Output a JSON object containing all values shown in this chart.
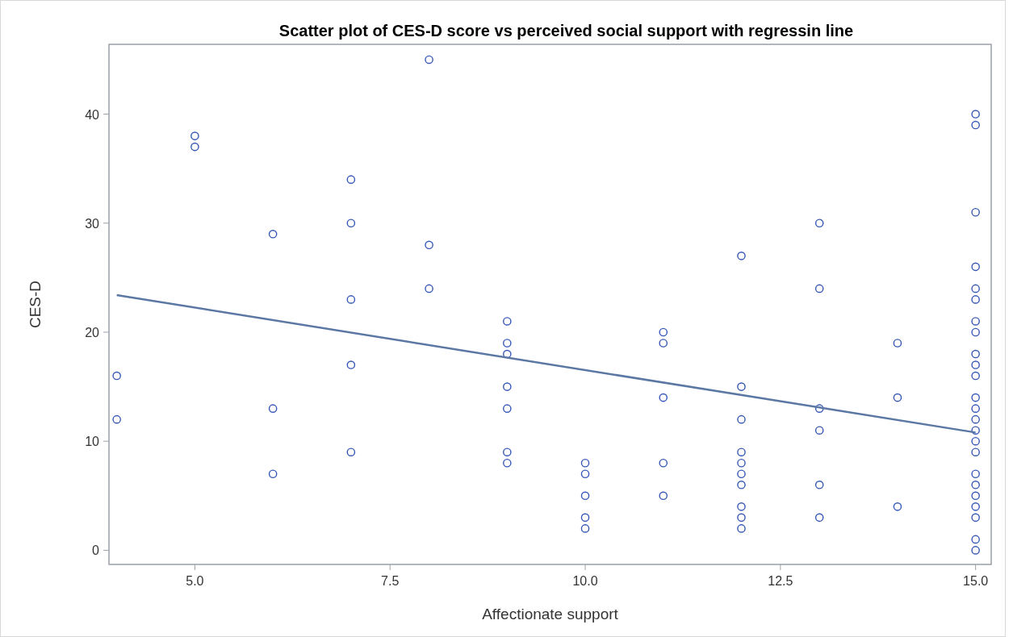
{
  "chart_data": {
    "type": "scatter",
    "title": "Scatter plot of CES-D score vs perceived social support with regressin line",
    "xlabel": "Affectionate support",
    "ylabel": "CES-D",
    "xlim": [
      3.9,
      15.2
    ],
    "ylim": [
      -1.3,
      46.4
    ],
    "xticks": [
      {
        "value": 5,
        "label": "5.0"
      },
      {
        "value": 7.5,
        "label": "7.5"
      },
      {
        "value": 10,
        "label": "10.0"
      },
      {
        "value": 12.5,
        "label": "12.5"
      },
      {
        "value": 15,
        "label": "15.0"
      }
    ],
    "yticks": [
      0,
      10,
      20,
      30,
      40
    ],
    "grid": false,
    "series": [
      {
        "marker": "circle",
        "color": "#3557b7",
        "x": [
          4,
          4,
          5,
          5,
          6,
          6,
          6,
          7,
          7,
          7,
          7,
          7,
          8,
          8,
          8,
          9,
          9,
          9,
          9,
          9,
          9,
          9,
          10,
          10,
          10,
          10,
          10,
          11,
          11,
          11,
          11,
          11,
          12,
          12,
          12,
          12,
          12,
          12,
          12,
          12,
          12,
          12,
          13,
          13,
          13,
          13,
          13,
          13,
          14,
          14,
          14,
          15,
          15,
          15,
          15,
          15,
          15,
          15,
          15,
          15,
          15,
          15,
          15,
          15,
          15,
          15,
          15,
          15,
          15,
          15,
          15,
          15,
          15,
          15,
          15
        ],
        "values": [
          16,
          12,
          38,
          37,
          29,
          13,
          7,
          34,
          30,
          23,
          17,
          9,
          45,
          28,
          24,
          21,
          19,
          18,
          15,
          13,
          9,
          8,
          8,
          7,
          5,
          3,
          2,
          20,
          19,
          14,
          8,
          5,
          27,
          15,
          12,
          9,
          8,
          7,
          6,
          4,
          3,
          2,
          30,
          24,
          13,
          11,
          6,
          3,
          19,
          14,
          4,
          40,
          39,
          31,
          26,
          24,
          23,
          21,
          20,
          18,
          17,
          16,
          14,
          13,
          12,
          11,
          10,
          9,
          7,
          6,
          5,
          4,
          3,
          1,
          0
        ]
      },
      {
        "type": "line",
        "color": "#5b77a3",
        "x": [
          4,
          15
        ],
        "values": [
          23.4,
          10.8
        ]
      }
    ]
  }
}
